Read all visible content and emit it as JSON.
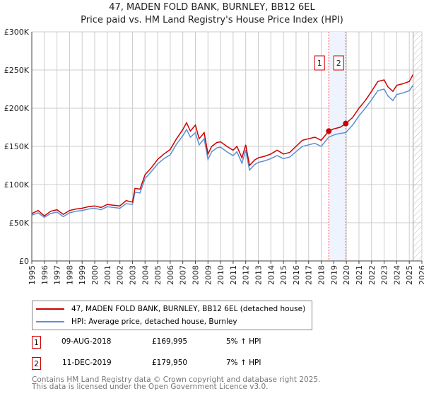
{
  "title_line1": "47, MADEN FOLD BANK, BURNLEY, BB12 6EL",
  "title_line2": "Price paid vs. HM Land Registry's House Price Index (HPI)",
  "colors": {
    "property": "#cc0000",
    "hpi": "#5b8fd4",
    "shade": "#eef3fd",
    "marker_border": "#cc0000"
  },
  "chart_data": {
    "type": "line",
    "xlim": [
      1995,
      2026
    ],
    "ylim": [
      0,
      300000
    ],
    "x_ticks": [
      "1995",
      "1996",
      "1997",
      "1998",
      "1999",
      "2000",
      "2001",
      "2002",
      "2003",
      "2004",
      "2005",
      "2006",
      "2007",
      "2008",
      "2009",
      "2010",
      "2011",
      "2012",
      "2013",
      "2014",
      "2015",
      "2016",
      "2017",
      "2018",
      "2019",
      "2020",
      "2021",
      "2022",
      "2023",
      "2024",
      "2025",
      "2026"
    ],
    "y_ticks": [
      {
        "v": 0,
        "label": "£0"
      },
      {
        "v": 50000,
        "label": "£50K"
      },
      {
        "v": 100000,
        "label": "£100K"
      },
      {
        "v": 150000,
        "label": "£150K"
      },
      {
        "v": 200000,
        "label": "£200K"
      },
      {
        "v": 250000,
        "label": "£250K"
      },
      {
        "v": 300000,
        "label": "£300K"
      }
    ],
    "grid": true,
    "forecast_start": 2025.3,
    "shaded_range": [
      2018.6,
      2019.95
    ],
    "series": [
      {
        "name": "47, MADEN FOLD BANK, BURNLEY, BB12 6EL (detached house)",
        "x": [
          1995,
          1995.5,
          1996,
          1996.5,
          1997,
          1997.5,
          1998,
          1998.5,
          1999,
          1999.5,
          2000,
          2000.5,
          2001,
          2001.5,
          2002,
          2002.5,
          2003,
          2003.2,
          2003.6,
          2004,
          2004.5,
          2005,
          2005.5,
          2006,
          2006.5,
          2007,
          2007.3,
          2007.6,
          2008,
          2008.3,
          2008.7,
          2009,
          2009.3,
          2009.7,
          2010,
          2010.5,
          2011,
          2011.3,
          2011.7,
          2012,
          2012.3,
          2012.7,
          2013,
          2013.5,
          2014,
          2014.5,
          2015,
          2015.5,
          2016,
          2016.5,
          2017,
          2017.5,
          2018,
          2018.6,
          2019,
          2019.5,
          2019.95,
          2020.5,
          2021,
          2021.5,
          2022,
          2022.5,
          2023,
          2023.3,
          2023.7,
          2024,
          2024.5,
          2025,
          2025.3
        ],
        "values": [
          62000,
          66000,
          59000,
          65000,
          67000,
          61000,
          66000,
          68000,
          69000,
          71000,
          72000,
          70000,
          74000,
          73000,
          72000,
          79000,
          77000,
          95000,
          94000,
          113000,
          122000,
          133000,
          140000,
          146000,
          160000,
          172000,
          181000,
          170000,
          178000,
          160000,
          168000,
          140000,
          150000,
          155000,
          156000,
          150000,
          145000,
          150000,
          135000,
          152000,
          125000,
          132000,
          135000,
          137000,
          140000,
          145000,
          140000,
          142000,
          150000,
          158000,
          160000,
          162000,
          158000,
          169995,
          173000,
          175000,
          179950,
          188000,
          200000,
          210000,
          222000,
          235000,
          237000,
          228000,
          222000,
          230000,
          232000,
          235000,
          244000
        ]
      },
      {
        "name": "HPI: Average price, detached house, Burnley",
        "x": [
          1995,
          1995.5,
          1996,
          1996.5,
          1997,
          1997.5,
          1998,
          1998.5,
          1999,
          1999.5,
          2000,
          2000.5,
          2001,
          2001.5,
          2002,
          2002.5,
          2003,
          2003.2,
          2003.6,
          2004,
          2004.5,
          2005,
          2005.5,
          2006,
          2006.5,
          2007,
          2007.3,
          2007.6,
          2008,
          2008.3,
          2008.7,
          2009,
          2009.3,
          2009.7,
          2010,
          2010.5,
          2011,
          2011.3,
          2011.7,
          2012,
          2012.3,
          2012.7,
          2013,
          2013.5,
          2014,
          2014.5,
          2015,
          2015.5,
          2016,
          2016.5,
          2017,
          2017.5,
          2018,
          2018.6,
          2019,
          2019.5,
          2019.95,
          2020.5,
          2021,
          2021.5,
          2022,
          2022.5,
          2023,
          2023.3,
          2023.7,
          2024,
          2024.5,
          2025,
          2025.3
        ],
        "values": [
          60000,
          63000,
          57000,
          62000,
          64000,
          58000,
          63000,
          65000,
          66000,
          68000,
          69000,
          67000,
          71000,
          70000,
          69000,
          75000,
          74000,
          90000,
          89000,
          108000,
          117000,
          127000,
          134000,
          139000,
          153000,
          164000,
          172000,
          162000,
          168000,
          152000,
          160000,
          133000,
          143000,
          148000,
          149000,
          143000,
          138000,
          143000,
          128000,
          145000,
          119000,
          126000,
          129000,
          131000,
          134000,
          138000,
          134000,
          136000,
          143000,
          150000,
          152000,
          154000,
          150000,
          162000,
          165000,
          167000,
          168000,
          178000,
          190000,
          200000,
          211000,
          223000,
          225000,
          216000,
          210000,
          218000,
          220000,
          223000,
          230000
        ]
      }
    ],
    "annotations": [
      {
        "label": "1",
        "x": 2018.6,
        "y": 169995
      },
      {
        "label": "2",
        "x": 2019.95,
        "y": 179950
      }
    ]
  },
  "legend": {
    "property": "47, MADEN FOLD BANK, BURNLEY, BB12 6EL (detached house)",
    "hpi": "HPI: Average price, detached house, Burnley"
  },
  "sales": [
    {
      "num": "1",
      "date": "09-AUG-2018",
      "price": "£169,995",
      "hpi": "5% ↑ HPI"
    },
    {
      "num": "2",
      "date": "11-DEC-2019",
      "price": "£179,950",
      "hpi": "7% ↑ HPI"
    }
  ],
  "footer": {
    "line1": "Contains HM Land Registry data © Crown copyright and database right 2025.",
    "line2": "This data is licensed under the Open Government Licence v3.0."
  }
}
